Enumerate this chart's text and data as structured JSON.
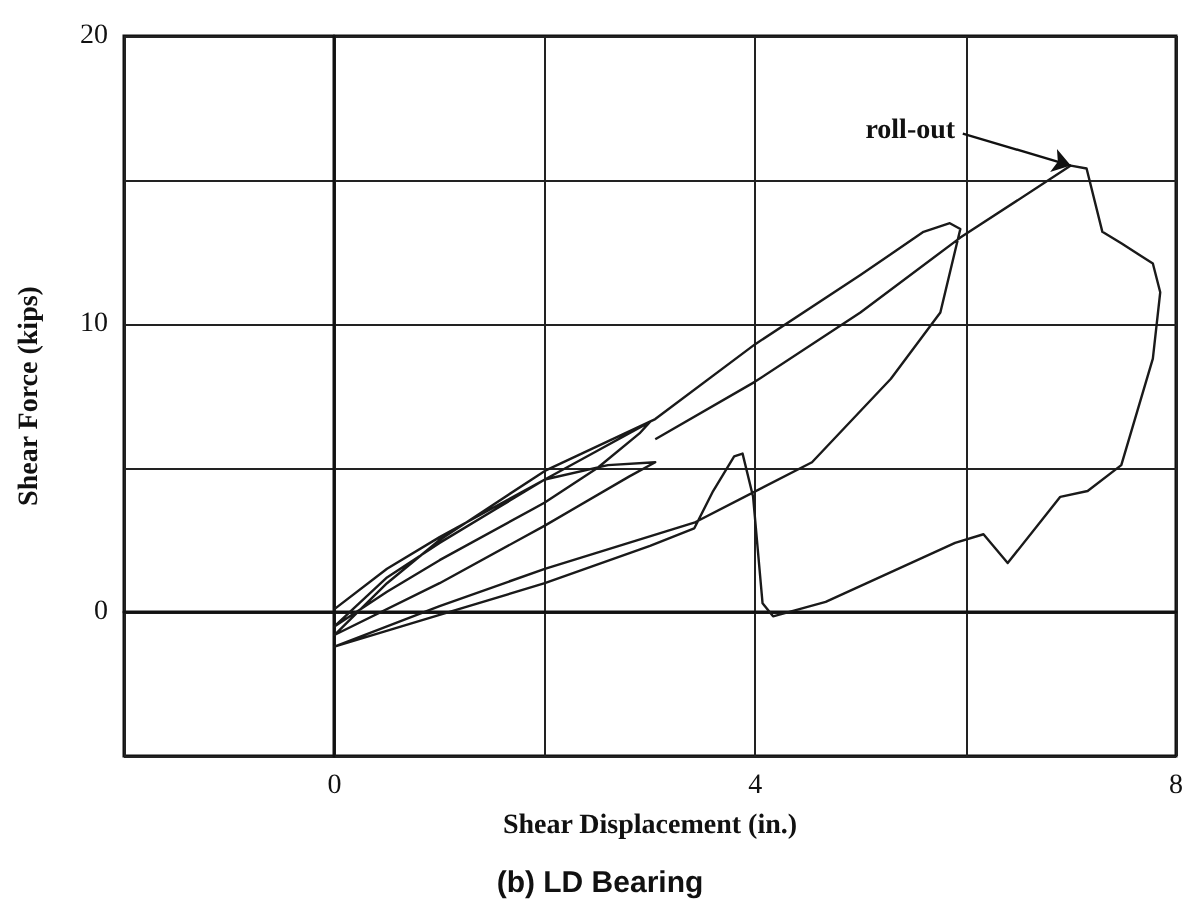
{
  "chart_data": {
    "type": "line",
    "title": "(b) LD Bearing",
    "xlabel": "Shear Displacement (in.)",
    "ylabel": "Shear Force (kips)",
    "xlim": [
      -2,
      8
    ],
    "xticks": [
      {
        "value": -2,
        "label": null
      },
      0,
      {
        "value": 2,
        "label": null
      },
      4,
      {
        "value": 6,
        "label": null
      },
      8
    ],
    "ylim": [
      -5,
      20
    ],
    "yticks": [
      {
        "value": -5,
        "label": null
      },
      0,
      {
        "value": 5,
        "label": null
      },
      10,
      {
        "value": 15,
        "label": null
      },
      20
    ],
    "grid": true,
    "marker": "none",
    "line_style": "solid",
    "annotations": [
      {
        "text": "roll-out",
        "x": 7.0,
        "y": 15.5
      }
    ],
    "series": [
      {
        "color": "#1a1a1a",
        "x": [
          0,
          0.5,
          1,
          1.5,
          2,
          2.5,
          3.0,
          2.9,
          2.5,
          2,
          1,
          0.5,
          0,
          0.5,
          1,
          2,
          2.6,
          3.05,
          2.8,
          2,
          1,
          0,
          0.5,
          1,
          2,
          3.05,
          4,
          5,
          5.6,
          5.85,
          5.95,
          5.76,
          5.29,
          4.54,
          3.42,
          2,
          1,
          0,
          1,
          2,
          3,
          3.42,
          3.6,
          3.8,
          3.88,
          3.98,
          4.07,
          4.17,
          4.67,
          5.9,
          6.17,
          6.4,
          6.9,
          7.16,
          7.48,
          7.78,
          7.85,
          7.78,
          7.48,
          7.3,
          7.15,
          7.0,
          5.95,
          5,
          4,
          3.05
        ],
        "values": [
          0.1,
          1.5,
          2.6,
          3.6,
          4.6,
          5.6,
          6.6,
          6.2,
          5.0,
          3.8,
          1.8,
          0.7,
          -0.5,
          1.2,
          2.4,
          4.6,
          5.1,
          5.2,
          4.7,
          3.0,
          1.0,
          -0.8,
          1.0,
          2.5,
          4.9,
          6.7,
          9.3,
          11.7,
          13.2,
          13.5,
          13.3,
          10.4,
          8.1,
          5.2,
          3.1,
          1.5,
          0.2,
          -1.2,
          -0.1,
          1.0,
          2.3,
          2.9,
          4.2,
          5.4,
          5.5,
          4.0,
          0.3,
          -0.15,
          0.35,
          2.4,
          2.7,
          1.7,
          4.0,
          4.2,
          5.1,
          8.8,
          11.1,
          12.1,
          12.8,
          13.2,
          15.4,
          15.5,
          13.0,
          10.4,
          8.0,
          6.0
        ]
      }
    ]
  }
}
